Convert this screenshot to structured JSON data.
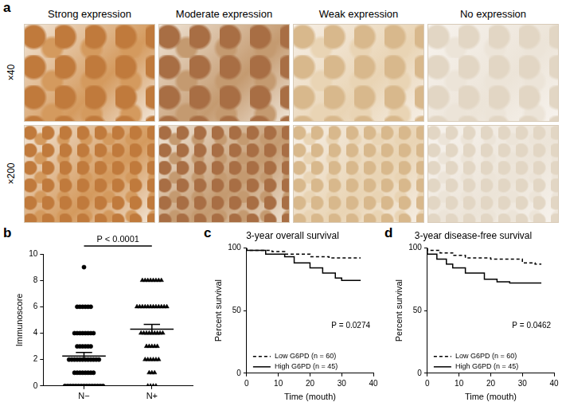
{
  "image_panel": {
    "label": "a",
    "columns": [
      "Strong expression",
      "Moderate expression",
      "Weak expression",
      "No expression"
    ],
    "rows": [
      "×40",
      "×200"
    ]
  },
  "chart_data": [
    {
      "label": "b",
      "type": "scatter",
      "y_label": "Immunoscore",
      "annotation": "P < 0.0001",
      "ylim": [
        0,
        10
      ],
      "yticks": [
        0,
        2,
        4,
        6,
        8,
        10
      ],
      "grid": false,
      "series": [
        {
          "name": "N−",
          "marker": "circle",
          "color": "#000000",
          "mean": 2.27,
          "sem": 0.27,
          "values": [
            0,
            0,
            0,
            0,
            0,
            0,
            0,
            0,
            0,
            0,
            0,
            0,
            0,
            0,
            0,
            1,
            1,
            1,
            1,
            1,
            1,
            1,
            1,
            2,
            2,
            2,
            2,
            2,
            2,
            2,
            2,
            2,
            2,
            2,
            2,
            3,
            3,
            3,
            3,
            3,
            3,
            4,
            4,
            4,
            4,
            4,
            4,
            4,
            4,
            6,
            6,
            6,
            6,
            6,
            6,
            9
          ]
        },
        {
          "name": "N+",
          "marker": "triangle",
          "color": "#000000",
          "mean": 4.3,
          "sem": 0.36,
          "values": [
            0,
            0,
            0,
            0,
            1,
            1,
            1,
            2,
            2,
            2,
            2,
            2,
            2,
            3,
            3,
            3,
            3,
            3,
            4,
            4,
            4,
            4,
            4,
            4,
            4,
            4,
            4,
            6,
            6,
            6,
            6,
            6,
            6,
            6,
            6,
            6,
            6,
            6,
            6,
            8,
            8,
            8,
            8,
            8,
            8,
            8,
            8
          ]
        }
      ]
    },
    {
      "label": "c",
      "type": "line",
      "title": "3-year overall survival",
      "x_label": "Time (mouth)",
      "y_label": "Percent survival",
      "annotation": "P = 0.0274",
      "legend": "lower left",
      "grid": false,
      "xlim": [
        0,
        40
      ],
      "xticks": [
        0,
        10,
        20,
        30,
        40
      ],
      "ylim": [
        0,
        100
      ],
      "yticks": [
        0,
        50,
        100
      ],
      "series": [
        {
          "name": "Low G6PD (n = 60)",
          "color": "#000000",
          "line_style": "dashed",
          "x": [
            0,
            8,
            12,
            20,
            26,
            36
          ],
          "values": [
            100,
            98,
            97,
            95,
            93,
            92
          ]
        },
        {
          "name": "High G6PD (n = 45)",
          "color": "#000000",
          "line_style": "solid",
          "x": [
            0,
            6,
            12,
            15,
            20,
            24,
            28,
            30,
            36
          ],
          "values": [
            100,
            98,
            95,
            93,
            88,
            84,
            80,
            76,
            74
          ]
        }
      ]
    },
    {
      "label": "d",
      "type": "line",
      "title": "3-year disease-free survival",
      "x_label": "Time (mouth)",
      "y_label": "Percent survival",
      "annotation": "P = 0.0462",
      "legend": "lower left",
      "grid": false,
      "xlim": [
        0,
        40
      ],
      "xticks": [
        0,
        10,
        20,
        30,
        40
      ],
      "ylim": [
        0,
        100
      ],
      "yticks": [
        0,
        50,
        100
      ],
      "series": [
        {
          "name": "Low G6PD (n = 60)",
          "color": "#000000",
          "line_style": "dashed",
          "x": [
            0,
            4,
            8,
            12,
            20,
            30,
            34,
            36
          ],
          "values": [
            100,
            98,
            96,
            94,
            92,
            91,
            88,
            87
          ]
        },
        {
          "name": "High G6PD (n = 45)",
          "color": "#000000",
          "line_style": "solid",
          "x": [
            0,
            3,
            6,
            8,
            12,
            18,
            22,
            26,
            36
          ],
          "values": [
            100,
            95,
            91,
            87,
            84,
            80,
            75,
            73,
            72
          ]
        }
      ]
    }
  ]
}
